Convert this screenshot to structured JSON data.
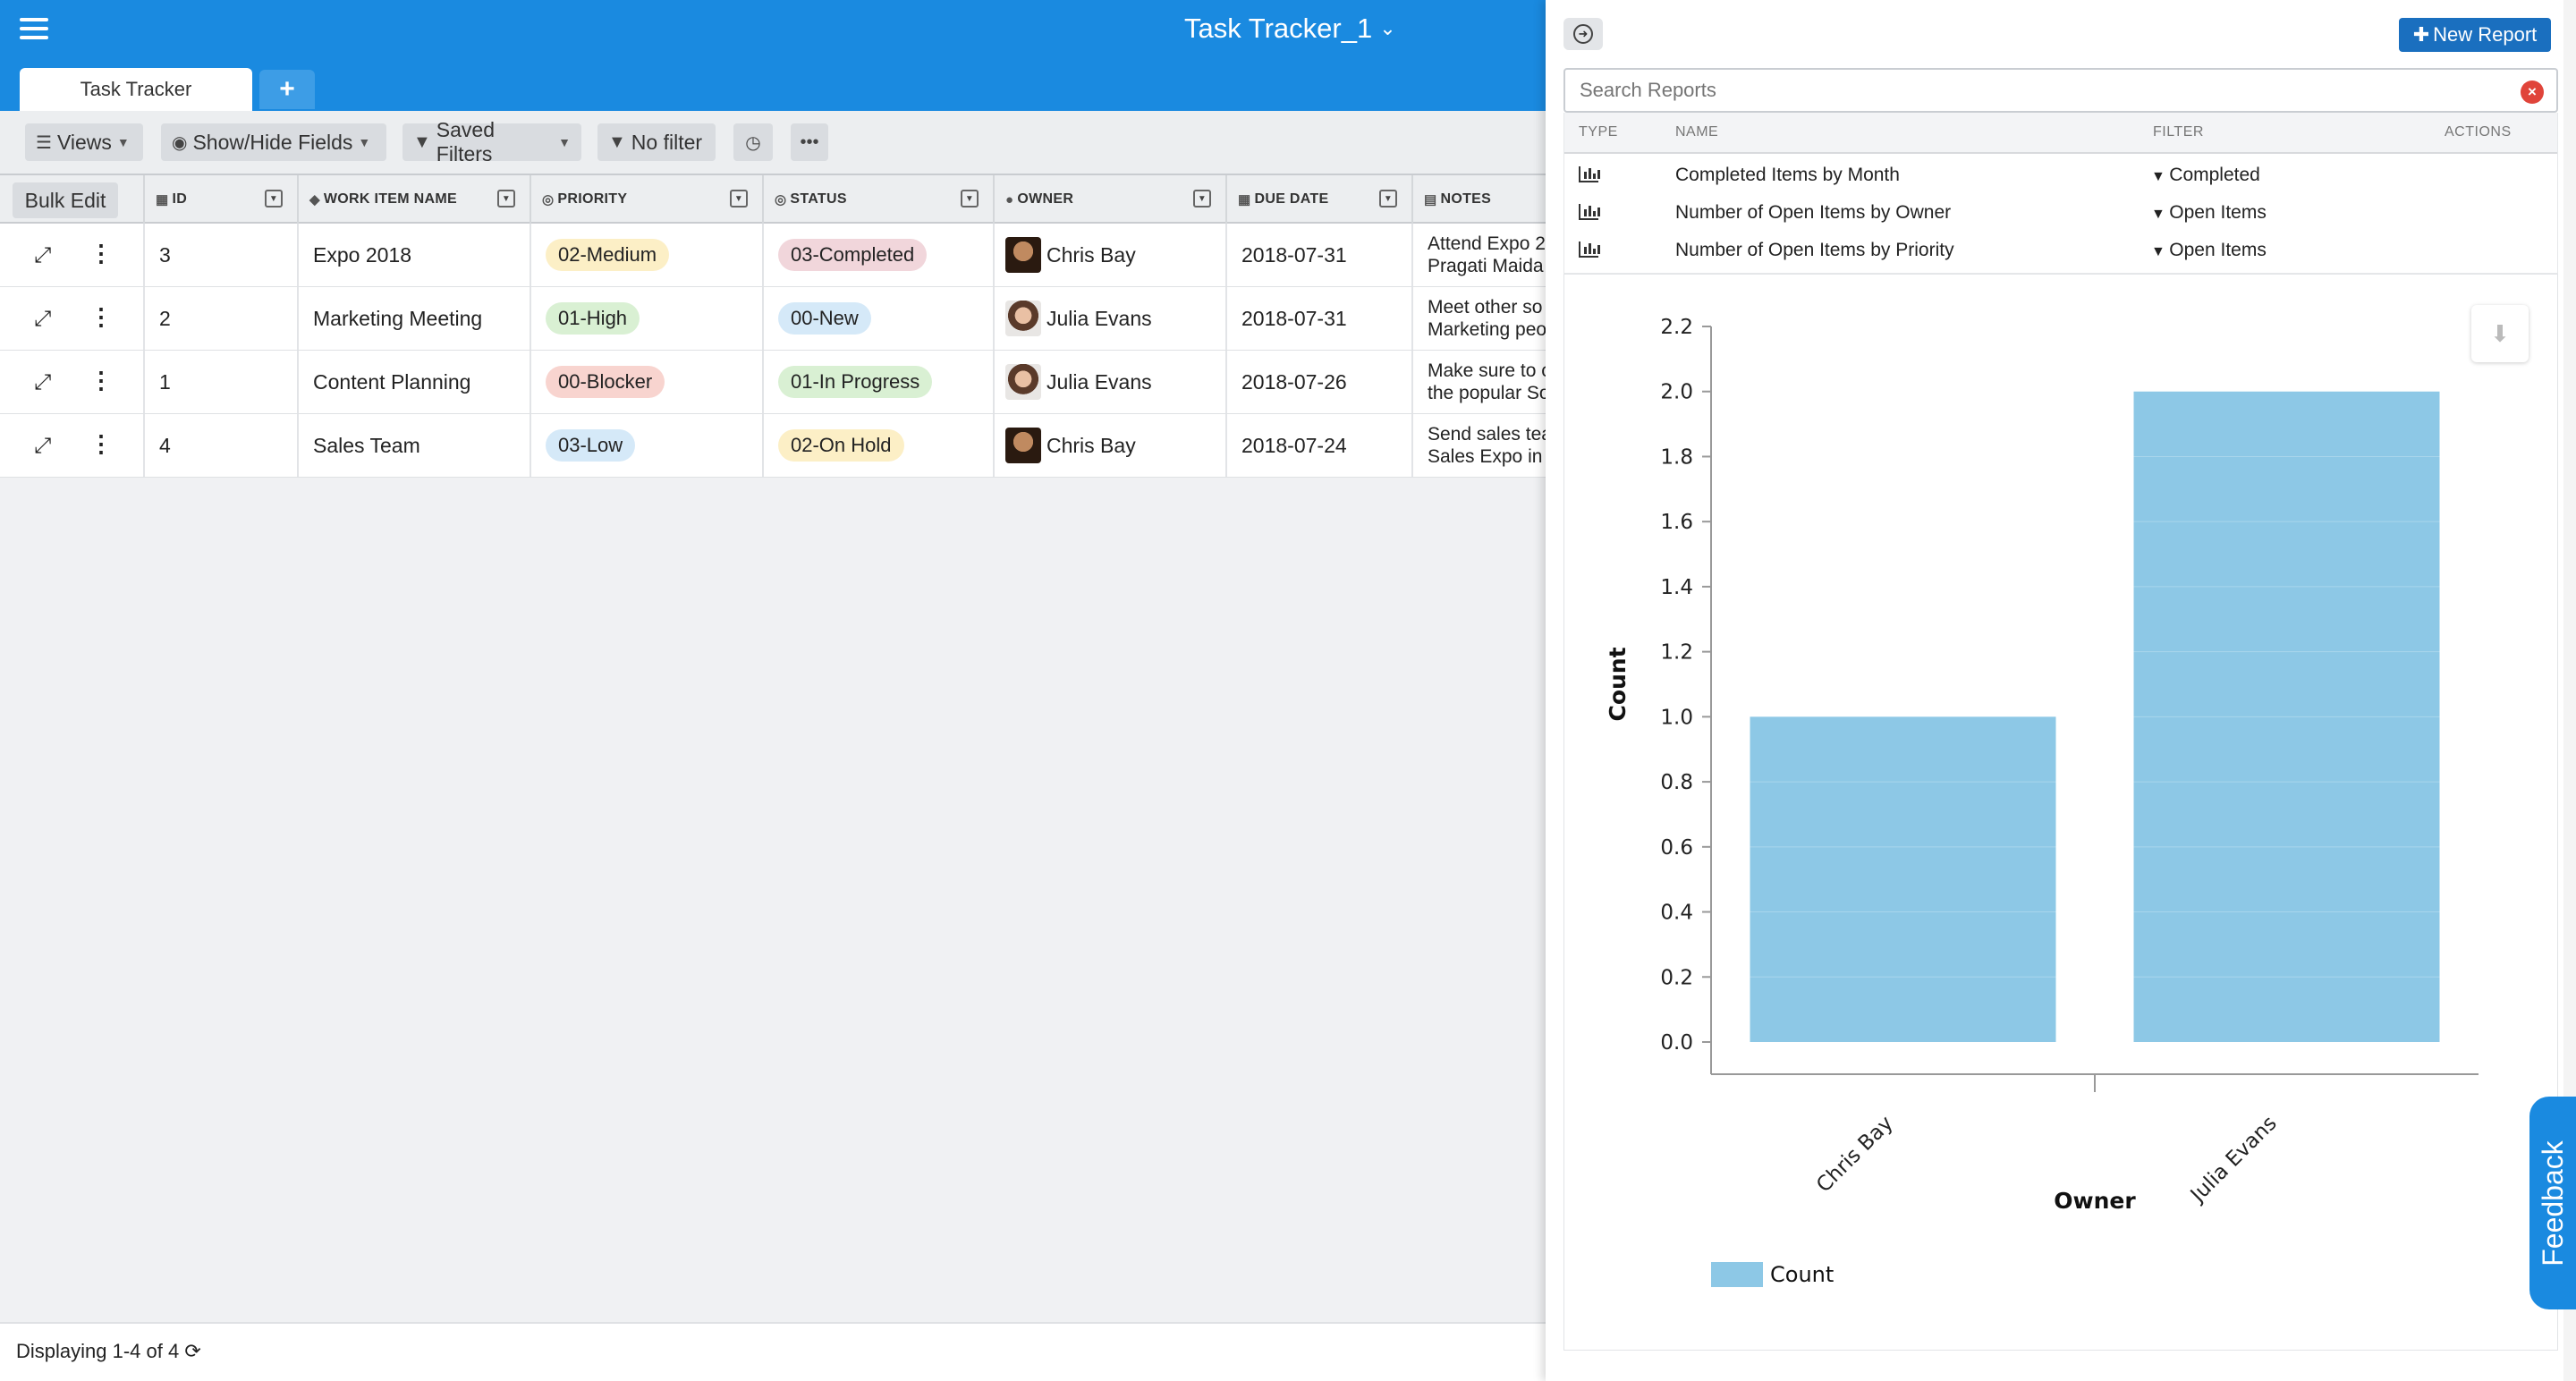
{
  "app": {
    "title": "Task Tracker_1",
    "title_chevron": "⌄",
    "tabs": [
      {
        "label": "Task Tracker"
      }
    ],
    "add_tab": "+"
  },
  "toolbar": {
    "views": "Views",
    "show_hide": "Show/Hide Fields",
    "saved_filters": "Saved Filters",
    "no_filter": "No filter",
    "history_icon": "clock-icon",
    "more_icon": "more-icon"
  },
  "grid": {
    "bulk_edit": "Bulk Edit",
    "columns": [
      "ID",
      "WORK ITEM NAME",
      "PRIORITY",
      "STATUS",
      "OWNER",
      "DUE DATE",
      "NOTES"
    ],
    "rows": [
      {
        "id": "3",
        "name": "Expo 2018",
        "priority": "02-Medium",
        "status": "03-Completed",
        "owner": "Chris Bay",
        "due": "2018-07-31",
        "notes1": "Attend Expo 2",
        "notes2": "Pragati Maida"
      },
      {
        "id": "2",
        "name": "Marketing Meeting",
        "priority": "01-High",
        "status": "00-New",
        "owner": "Julia Evans",
        "due": "2018-07-31",
        "notes1": "Meet other so",
        "notes2": "Marketing peo"
      },
      {
        "id": "1",
        "name": "Content Planning",
        "priority": "00-Blocker",
        "status": "01-In Progress",
        "owner": "Julia Evans",
        "due": "2018-07-26",
        "notes1": "Make sure to c",
        "notes2": "the popular So"
      },
      {
        "id": "4",
        "name": "Sales Team",
        "priority": "03-Low",
        "status": "02-On Hold",
        "owner": "Chris Bay",
        "due": "2018-07-24",
        "notes1": "Send sales tea",
        "notes2": "Sales Expo in I"
      }
    ],
    "colors": {
      "02-Medium": "#fcefc6",
      "01-High": "#d9f0d3",
      "00-Blocker": "#f8d4cf",
      "03-Low": "#d5e9f8",
      "03-Completed": "#f1d6db",
      "00-New": "#d5e9f8",
      "01-In Progress": "#d9f0d3",
      "02-On Hold": "#fcefc6"
    }
  },
  "status": {
    "text": "Displaying 1-4 of 4"
  },
  "panel": {
    "new_report": "New Report",
    "search_placeholder": "Search Reports",
    "headers": {
      "type": "TYPE",
      "name": "NAME",
      "filter": "FILTER",
      "actions": "ACTIONS"
    },
    "reports": [
      {
        "name": "Completed Items by Month",
        "filter": "Completed"
      },
      {
        "name": "Number of Open Items by Owner",
        "filter": "Open Items"
      },
      {
        "name": "Number of Open Items by Priority",
        "filter": "Open Items"
      }
    ]
  },
  "feedback": "Feedback",
  "chart_data": {
    "type": "bar",
    "categories": [
      "Chris Bay",
      "Julia Evans"
    ],
    "series": [
      {
        "name": "Count",
        "values": [
          1,
          2
        ]
      }
    ],
    "xlabel": "Owner",
    "ylabel": "Count",
    "ylim": [
      0,
      2.2
    ],
    "yticks": [
      "0.0",
      "0.2",
      "0.4",
      "0.6",
      "0.8",
      "1.0",
      "1.2",
      "1.4",
      "1.6",
      "1.8",
      "2.0",
      "2.2"
    ],
    "legend": "bottom-left",
    "bar_color": "#8dc8e6"
  }
}
